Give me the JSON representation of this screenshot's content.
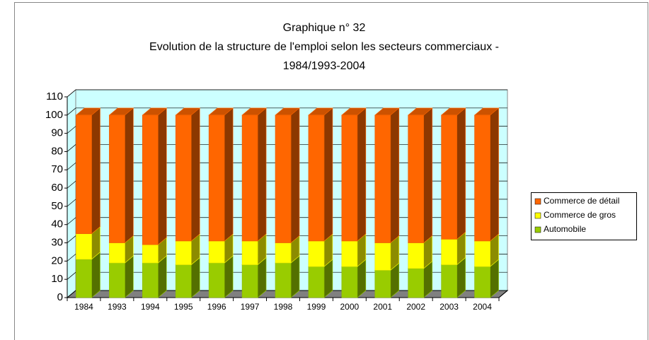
{
  "chart_data": {
    "type": "bar3d_stacked",
    "title": "Graphique n° 32",
    "subtitle": [
      "Evolution de la structure de l'emploi selon les secteurs commerciaux -",
      "1984/1993-2004"
    ],
    "categories": [
      "1984",
      "1993",
      "1994",
      "1995",
      "1996",
      "1997",
      "1998",
      "1999",
      "2000",
      "2001",
      "2002",
      "2003",
      "2004"
    ],
    "series": [
      {
        "name": "Automobile",
        "color": "#99cc00",
        "values": [
          21,
          19,
          19,
          18,
          19,
          18,
          19,
          17,
          17,
          15,
          16,
          18,
          17
        ]
      },
      {
        "name": "Commerce de gros",
        "color": "#ffff00",
        "values": [
          14,
          11,
          10,
          13,
          12,
          13,
          11,
          14,
          14,
          15,
          14,
          14,
          14
        ]
      },
      {
        "name": "Commerce de détail",
        "color": "#ff6600",
        "values": [
          65,
          70,
          71,
          69,
          69,
          69,
          70,
          69,
          69,
          70,
          70,
          68,
          69
        ]
      }
    ],
    "ylim": [
      0,
      110
    ],
    "yticks": [
      0,
      10,
      20,
      30,
      40,
      50,
      60,
      70,
      80,
      90,
      100,
      110
    ],
    "grid": true,
    "legend": "right"
  }
}
